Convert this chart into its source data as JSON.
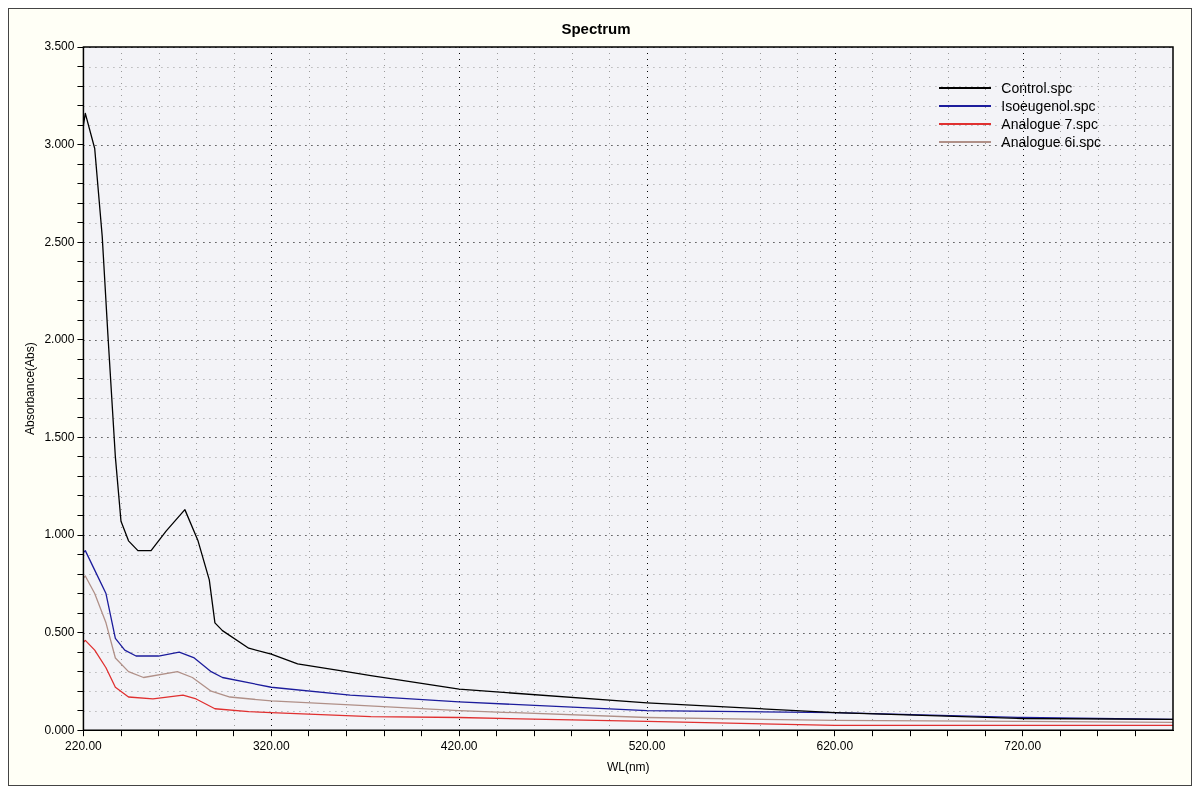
{
  "chart_data": {
    "type": "line",
    "title": "Spectrum",
    "xlabel": "WL(nm)",
    "ylabel": "Absorbance(Abs)",
    "xlim": [
      220,
      800
    ],
    "ylim": [
      0,
      3.5
    ],
    "xticks": [
      {
        "value": 220,
        "label": "220.00"
      },
      {
        "value": 240,
        "label": null
      },
      {
        "value": 260,
        "label": null
      },
      {
        "value": 280,
        "label": null
      },
      {
        "value": 300,
        "label": null
      },
      {
        "value": 320,
        "label": "320.00"
      },
      {
        "value": 340,
        "label": null
      },
      {
        "value": 360,
        "label": null
      },
      {
        "value": 380,
        "label": null
      },
      {
        "value": 400,
        "label": null
      },
      {
        "value": 420,
        "label": "420.00"
      },
      {
        "value": 440,
        "label": null
      },
      {
        "value": 460,
        "label": null
      },
      {
        "value": 480,
        "label": null
      },
      {
        "value": 500,
        "label": null
      },
      {
        "value": 520,
        "label": "520.00"
      },
      {
        "value": 540,
        "label": null
      },
      {
        "value": 560,
        "label": null
      },
      {
        "value": 580,
        "label": null
      },
      {
        "value": 600,
        "label": null
      },
      {
        "value": 620,
        "label": "620.00"
      },
      {
        "value": 640,
        "label": null
      },
      {
        "value": 660,
        "label": null
      },
      {
        "value": 680,
        "label": null
      },
      {
        "value": 700,
        "label": null
      },
      {
        "value": 720,
        "label": "720.00"
      },
      {
        "value": 740,
        "label": null
      },
      {
        "value": 760,
        "label": null
      },
      {
        "value": 780,
        "label": null
      }
    ],
    "yticks": [
      {
        "value": 0,
        "label": "0.000"
      },
      {
        "value": 0.1,
        "label": null
      },
      {
        "value": 0.2,
        "label": null
      },
      {
        "value": 0.3,
        "label": null
      },
      {
        "value": 0.4,
        "label": null
      },
      {
        "value": 0.5,
        "label": "0.500"
      },
      {
        "value": 0.6,
        "label": null
      },
      {
        "value": 0.7,
        "label": null
      },
      {
        "value": 0.8,
        "label": null
      },
      {
        "value": 0.9,
        "label": null
      },
      {
        "value": 1,
        "label": "1.000"
      },
      {
        "value": 1.1,
        "label": null
      },
      {
        "value": 1.2,
        "label": null
      },
      {
        "value": 1.3,
        "label": null
      },
      {
        "value": 1.4,
        "label": null
      },
      {
        "value": 1.5,
        "label": "1.500"
      },
      {
        "value": 1.6,
        "label": null
      },
      {
        "value": 1.7,
        "label": null
      },
      {
        "value": 1.8,
        "label": null
      },
      {
        "value": 1.9,
        "label": null
      },
      {
        "value": 2,
        "label": "2.000"
      },
      {
        "value": 2.1,
        "label": null
      },
      {
        "value": 2.2,
        "label": null
      },
      {
        "value": 2.3,
        "label": null
      },
      {
        "value": 2.4,
        "label": null
      },
      {
        "value": 2.5,
        "label": "2.500"
      },
      {
        "value": 2.6,
        "label": null
      },
      {
        "value": 2.7,
        "label": null
      },
      {
        "value": 2.8,
        "label": null
      },
      {
        "value": 2.9,
        "label": null
      },
      {
        "value": 3,
        "label": "3.000"
      },
      {
        "value": 3.1,
        "label": null
      },
      {
        "value": 3.2,
        "label": null
      },
      {
        "value": 3.3,
        "label": null
      },
      {
        "value": 3.4,
        "label": null
      },
      {
        "value": 3.5,
        "label": "3.500"
      }
    ],
    "grid": true,
    "legend": "top right",
    "marker": "none",
    "line_style": "solid",
    "series": [
      {
        "name": "Control.spc",
        "color": "#000000",
        "x": [
          220,
          221,
          226,
          230,
          233,
          237,
          240,
          244,
          249,
          256,
          264,
          274,
          281,
          287,
          290,
          294,
          308,
          320,
          334,
          360,
          373,
          420,
          520,
          620,
          720,
          800
        ],
        "values": [
          3.1,
          3.16,
          2.98,
          2.53,
          2.03,
          1.4,
          1.07,
          0.97,
          0.92,
          0.92,
          1.02,
          1.13,
          0.97,
          0.77,
          0.55,
          0.51,
          0.42,
          0.39,
          0.34,
          0.3,
          0.28,
          0.21,
          0.14,
          0.09,
          0.06,
          0.055
        ]
      },
      {
        "name": "Isoeugenol.spc",
        "color": "#1c1c9c",
        "x": [
          220,
          221,
          226,
          232,
          237,
          242,
          248,
          260,
          271,
          279,
          288,
          294,
          320,
          362,
          420,
          520,
          620,
          720,
          800
        ],
        "values": [
          0.91,
          0.92,
          0.82,
          0.7,
          0.47,
          0.41,
          0.38,
          0.38,
          0.4,
          0.37,
          0.3,
          0.27,
          0.22,
          0.18,
          0.145,
          0.1,
          0.09,
          0.065,
          0.055
        ]
      },
      {
        "name": "Analogue 7.spc",
        "color": "#e03030",
        "x": [
          220,
          221,
          226,
          232,
          237,
          244,
          257,
          273,
          280,
          290,
          308,
          320,
          373,
          420,
          520,
          620,
          720,
          800
        ],
        "values": [
          0.45,
          0.46,
          0.41,
          0.32,
          0.22,
          0.17,
          0.16,
          0.18,
          0.16,
          0.11,
          0.095,
          0.09,
          0.07,
          0.065,
          0.045,
          0.025,
          0.025,
          0.025
        ]
      },
      {
        "name": "Analogue 6i.spc",
        "color": "#b09088",
        "x": [
          220,
          221,
          226,
          232,
          237,
          244,
          252,
          270,
          278,
          288,
          298,
          320,
          362,
          420,
          520,
          620,
          720,
          800
        ],
        "values": [
          0.78,
          0.79,
          0.7,
          0.55,
          0.37,
          0.3,
          0.27,
          0.3,
          0.27,
          0.2,
          0.17,
          0.15,
          0.13,
          0.1,
          0.065,
          0.05,
          0.045,
          0.04
        ]
      }
    ]
  }
}
